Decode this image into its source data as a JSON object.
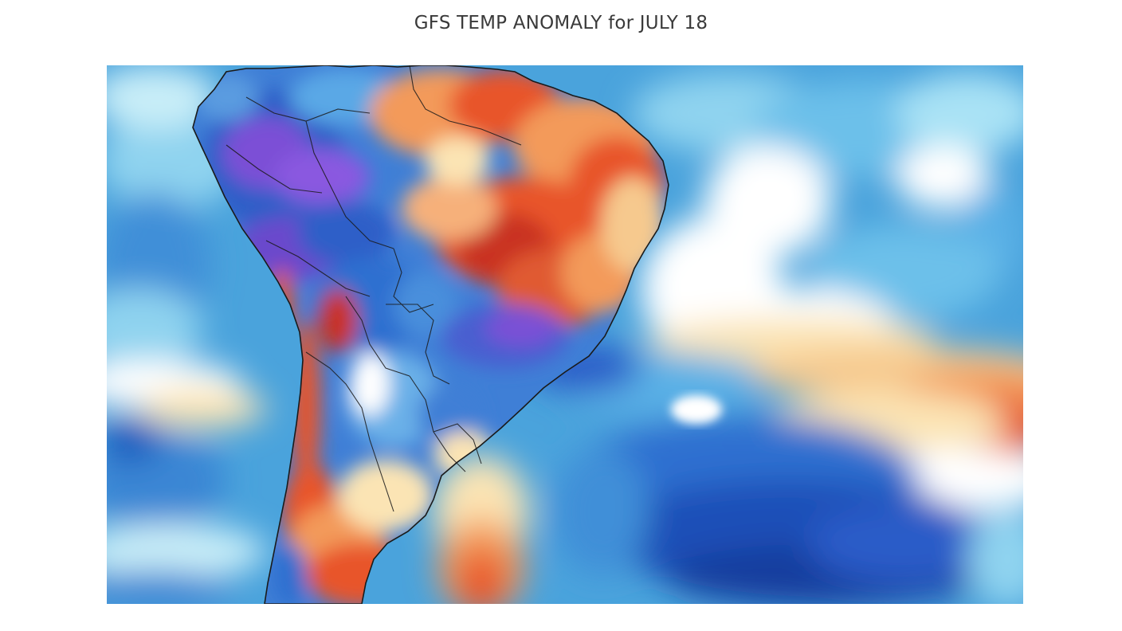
{
  "page": {
    "title": "GFS TEMP ANOMALY for JULY 18"
  },
  "map": {
    "region": "south-america",
    "palette": {
      "deep_purple": "#7b4fd6",
      "dark_blue": "#1f4fb8",
      "blue": "#2f6fd0",
      "mid_blue": "#4a9be0",
      "light_blue": "#8fd3ef",
      "pale_cyan": "#c9eef8",
      "white": "#ffffff",
      "pale_yellow": "#fbe4b4",
      "orange": "#f39a5a",
      "red_orange": "#e8552b",
      "red": "#c93322",
      "coastline": "#1a1a1a"
    }
  }
}
